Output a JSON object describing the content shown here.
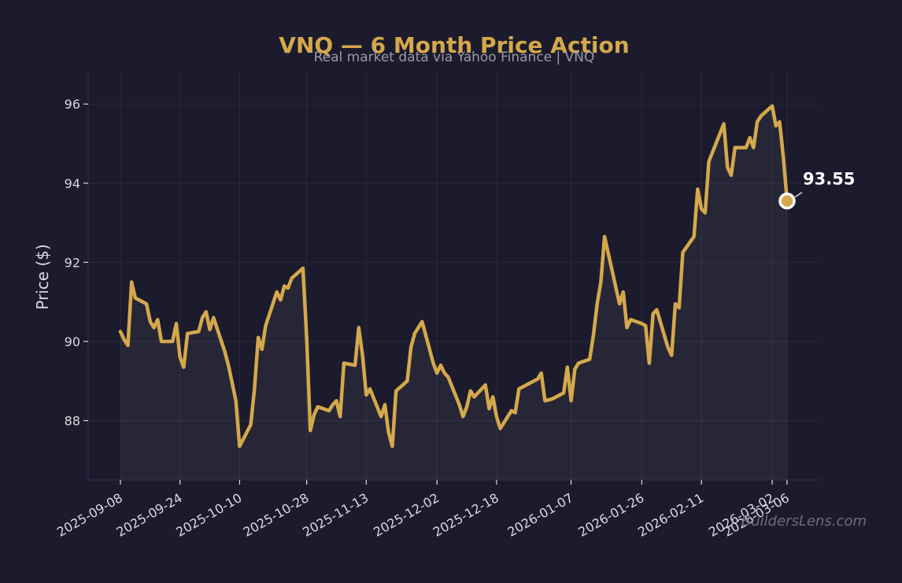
{
  "chart_data": {
    "type": "line",
    "title": "VNQ — 6 Month Price Action",
    "subtitle": "Real market data via Yahoo Finance | VNQ",
    "ylabel": "Price ($)",
    "xlabel": "",
    "ylim": [
      86.5,
      96.8
    ],
    "yticks": [
      88,
      90,
      92,
      94,
      96
    ],
    "xticks": [
      "2025-09-08",
      "2025-09-24",
      "2025-10-10",
      "2025-10-28",
      "2025-11-13",
      "2025-12-02",
      "2025-12-18",
      "2026-01-07",
      "2026-01-26",
      "2026-02-11",
      "2026-03-02",
      "2026-03-06"
    ],
    "grid": true,
    "series": [
      {
        "color": "#d4a84b",
        "x": [
          "2025-09-08",
          "2025-09-09",
          "2025-09-10",
          "2025-09-11",
          "2025-09-12",
          "2025-09-15",
          "2025-09-16",
          "2025-09-17",
          "2025-09-18",
          "2025-09-19",
          "2025-09-22",
          "2025-09-23",
          "2025-09-24",
          "2025-09-25",
          "2025-09-26",
          "2025-09-29",
          "2025-09-30",
          "2025-10-01",
          "2025-10-02",
          "2025-10-03",
          "2025-10-06",
          "2025-10-07",
          "2025-10-08",
          "2025-10-09",
          "2025-10-10",
          "2025-10-13",
          "2025-10-14",
          "2025-10-15",
          "2025-10-16",
          "2025-10-17",
          "2025-10-20",
          "2025-10-21",
          "2025-10-22",
          "2025-10-23",
          "2025-10-24",
          "2025-10-27",
          "2025-10-28",
          "2025-10-29",
          "2025-10-30",
          "2025-10-31",
          "2025-11-03",
          "2025-11-04",
          "2025-11-05",
          "2025-11-06",
          "2025-11-07",
          "2025-11-10",
          "2025-11-11",
          "2025-11-12",
          "2025-11-13",
          "2025-11-14",
          "2025-11-17",
          "2025-11-18",
          "2025-11-19",
          "2025-11-20",
          "2025-11-21",
          "2025-11-24",
          "2025-11-25",
          "2025-11-26",
          "2025-11-28",
          "2025-12-01",
          "2025-12-02",
          "2025-12-03",
          "2025-12-04",
          "2025-12-05",
          "2025-12-08",
          "2025-12-09",
          "2025-12-10",
          "2025-12-11",
          "2025-12-12",
          "2025-12-15",
          "2025-12-16",
          "2025-12-17",
          "2025-12-18",
          "2025-12-19",
          "2025-12-22",
          "2025-12-23",
          "2025-12-24",
          "2025-12-26",
          "2025-12-29",
          "2025-12-30",
          "2025-12-31",
          "2026-01-02",
          "2026-01-05",
          "2026-01-06",
          "2026-01-07",
          "2026-01-08",
          "2026-01-09",
          "2026-01-12",
          "2026-01-13",
          "2026-01-14",
          "2026-01-15",
          "2026-01-16",
          "2026-01-20",
          "2026-01-21",
          "2026-01-22",
          "2026-01-23",
          "2026-01-26",
          "2026-01-27",
          "2026-01-28",
          "2026-01-29",
          "2026-01-30",
          "2026-02-02",
          "2026-02-03",
          "2026-02-04",
          "2026-02-05",
          "2026-02-06",
          "2026-02-09",
          "2026-02-10",
          "2026-02-11",
          "2026-02-12",
          "2026-02-13",
          "2026-02-17",
          "2026-02-18",
          "2026-02-19",
          "2026-02-20",
          "2026-02-23",
          "2026-02-24",
          "2026-02-25",
          "2026-02-26",
          "2026-02-27",
          "2026-03-02",
          "2026-03-03",
          "2026-03-04",
          "2026-03-05",
          "2026-03-06"
        ],
        "values": [
          90.25,
          90.05,
          89.9,
          91.5,
          91.1,
          90.95,
          90.5,
          90.35,
          90.55,
          90.0,
          90.0,
          90.45,
          89.6,
          89.35,
          90.2,
          90.25,
          90.6,
          90.75,
          90.3,
          90.6,
          89.75,
          89.4,
          88.95,
          88.5,
          87.35,
          87.9,
          88.8,
          90.1,
          89.8,
          90.4,
          91.25,
          91.05,
          91.4,
          91.35,
          91.6,
          91.85,
          90.1,
          87.75,
          88.15,
          88.35,
          88.25,
          88.4,
          88.5,
          88.1,
          89.45,
          89.4,
          90.35,
          89.65,
          88.65,
          88.8,
          88.1,
          88.4,
          87.7,
          87.35,
          88.75,
          89.0,
          89.85,
          90.2,
          90.5,
          89.45,
          89.2,
          89.4,
          89.2,
          89.1,
          88.4,
          88.1,
          88.35,
          88.75,
          88.6,
          88.9,
          88.3,
          88.6,
          88.1,
          87.8,
          88.25,
          88.2,
          88.8,
          88.9,
          89.05,
          89.2,
          88.5,
          88.55,
          88.7,
          89.35,
          88.5,
          89.3,
          89.45,
          89.55,
          90.15,
          90.95,
          91.5,
          92.65,
          90.95,
          91.25,
          90.35,
          90.55,
          90.45,
          90.4,
          89.45,
          90.7,
          90.8,
          89.85,
          89.65,
          90.95,
          90.85,
          92.25,
          92.65,
          93.85,
          93.35,
          93.25,
          94.55,
          95.5,
          94.4,
          94.2,
          94.9,
          94.9,
          95.15,
          94.9,
          95.55,
          95.7,
          95.95,
          95.45,
          95.55,
          94.65,
          93.55
        ]
      }
    ],
    "annotation": {
      "label": "93.55",
      "value": 93.55,
      "x": "2026-03-06"
    },
    "watermark": "BuildersLens.com"
  }
}
